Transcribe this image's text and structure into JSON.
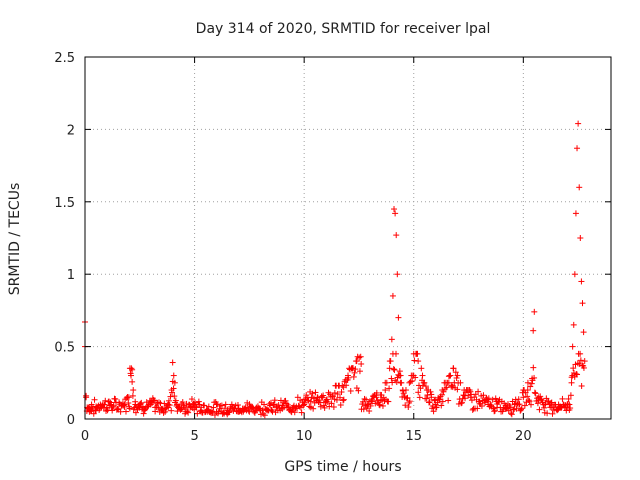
{
  "chart_data": {
    "type": "scatter",
    "title": "Day 314 of 2020, SRMTID for receiver lpal",
    "xlabel": "GPS time / hours",
    "ylabel": "SRMTID / TECUs",
    "xlim": [
      0,
      24
    ],
    "ylim": [
      0,
      2.5
    ],
    "xticks": [
      0,
      5,
      10,
      15,
      20
    ],
    "xtick_labels": [
      "0",
      "5",
      "10",
      "15",
      "20"
    ],
    "yticks": [
      0,
      0.5,
      1,
      1.5,
      2,
      2.5
    ],
    "ytick_labels": [
      "0",
      "0.5",
      "1",
      "1.5",
      "2",
      "2.5"
    ],
    "grid": true,
    "marker": "+",
    "series": [
      {
        "name": "SRMTID",
        "color": "#ff0000",
        "x": [
          0.0,
          0.0,
          0.05,
          0.1,
          0.2,
          0.3,
          0.5,
          0.7,
          1.0,
          1.2,
          1.5,
          1.8,
          2.0,
          2.05,
          2.1,
          2.15,
          2.2,
          2.3,
          2.5,
          2.7,
          3.0,
          3.2,
          3.5,
          3.8,
          3.95,
          4.0,
          4.05,
          4.1,
          4.2,
          4.4,
          4.6,
          4.8,
          5.0,
          5.3,
          5.6,
          6.0,
          6.5,
          7.0,
          7.5,
          8.0,
          8.5,
          9.0,
          9.5,
          10.0,
          10.3,
          10.6,
          11.0,
          11.4,
          11.8,
          12.0,
          12.2,
          12.4,
          12.6,
          12.9,
          13.1,
          13.3,
          13.5,
          13.7,
          13.9,
          14.0,
          14.05,
          14.1,
          14.15,
          14.2,
          14.25,
          14.3,
          14.4,
          14.5,
          14.6,
          14.8,
          15.0,
          15.2,
          15.4,
          15.6,
          15.8,
          16.0,
          16.3,
          16.6,
          16.8,
          17.0,
          17.3,
          17.6,
          18.0,
          18.4,
          18.8,
          19.2,
          19.6,
          20.0,
          20.2,
          20.4,
          20.45,
          20.5,
          20.7,
          21.0,
          21.3,
          21.6,
          21.9,
          22.0,
          22.1,
          22.2,
          22.25,
          22.3,
          22.35,
          22.4,
          22.45,
          22.5,
          22.55,
          22.6,
          22.65,
          22.7,
          22.75,
          22.8
        ],
        "y": [
          0.67,
          0.5,
          0.15,
          0.08,
          0.05,
          0.1,
          0.06,
          0.1,
          0.08,
          0.1,
          0.07,
          0.1,
          0.15,
          0.35,
          0.3,
          0.34,
          0.2,
          0.1,
          0.08,
          0.07,
          0.1,
          0.08,
          0.06,
          0.1,
          0.2,
          0.39,
          0.3,
          0.25,
          0.1,
          0.07,
          0.05,
          0.08,
          0.1,
          0.06,
          0.05,
          0.05,
          0.06,
          0.05,
          0.05,
          0.06,
          0.06,
          0.07,
          0.08,
          0.1,
          0.12,
          0.15,
          0.13,
          0.18,
          0.22,
          0.3,
          0.35,
          0.4,
          0.38,
          0.1,
          0.12,
          0.15,
          0.13,
          0.2,
          0.35,
          0.55,
          0.85,
          1.45,
          1.42,
          1.27,
          1.0,
          0.7,
          0.3,
          0.2,
          0.15,
          0.25,
          0.45,
          0.4,
          0.3,
          0.2,
          0.15,
          0.1,
          0.2,
          0.25,
          0.35,
          0.3,
          0.2,
          0.15,
          0.12,
          0.1,
          0.08,
          0.07,
          0.1,
          0.15,
          0.2,
          0.28,
          0.61,
          0.74,
          0.15,
          0.1,
          0.08,
          0.07,
          0.08,
          0.1,
          0.1,
          0.25,
          0.5,
          0.65,
          1.0,
          1.42,
          1.87,
          2.04,
          1.6,
          1.25,
          0.95,
          0.8,
          0.6,
          0.4
        ]
      }
    ],
    "near_zero_bounds": [
      0.03,
      0.2
    ]
  }
}
